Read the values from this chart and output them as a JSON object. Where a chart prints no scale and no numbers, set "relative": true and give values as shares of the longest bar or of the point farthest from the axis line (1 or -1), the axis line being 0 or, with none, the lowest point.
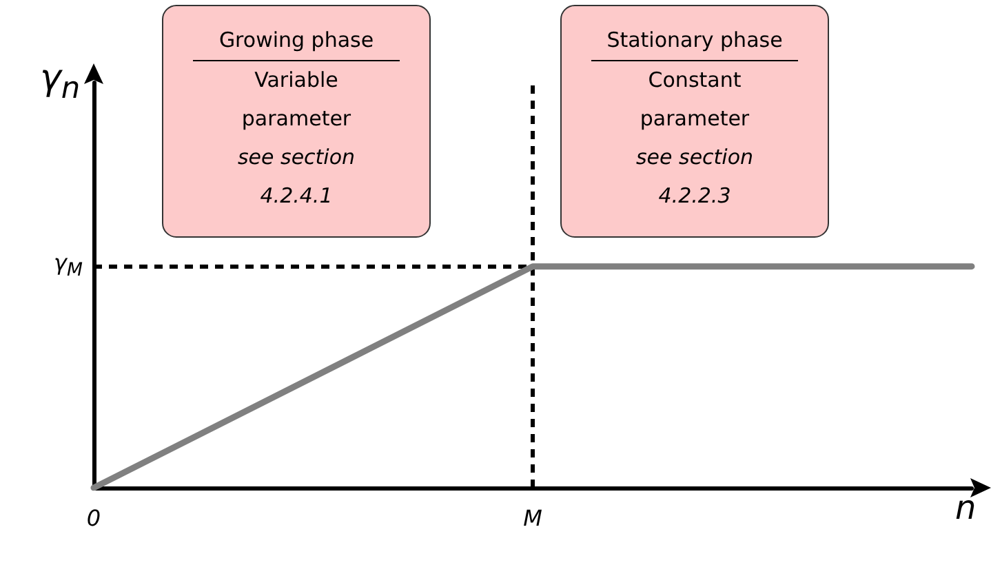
{
  "chart_data": {
    "type": "line",
    "xlabel": "n",
    "ylabel": "γ$_{n}$",
    "relative": true,
    "categories": [
      "0",
      "M",
      null
    ],
    "values": [
      0,
      1,
      1
    ],
    "color": "#808080",
    "ref_lines": [
      {
        "axis": "x",
        "value": "M",
        "color": "#000000",
        "line_style": "dashed"
      },
      {
        "axis": "y",
        "value": 1,
        "label": "γ$_{M}$",
        "color": "#000000",
        "line_style": "dashed"
      }
    ],
    "annotations": [
      "Growing phase\nVariable\nparameter\nsee section\n4.2.4.1",
      "Stationary phase\nConstant\nparameter\nsee section\n4.2.2.3"
    ],
    "grid": false,
    "marker": "none",
    "line_style": "solid"
  }
}
